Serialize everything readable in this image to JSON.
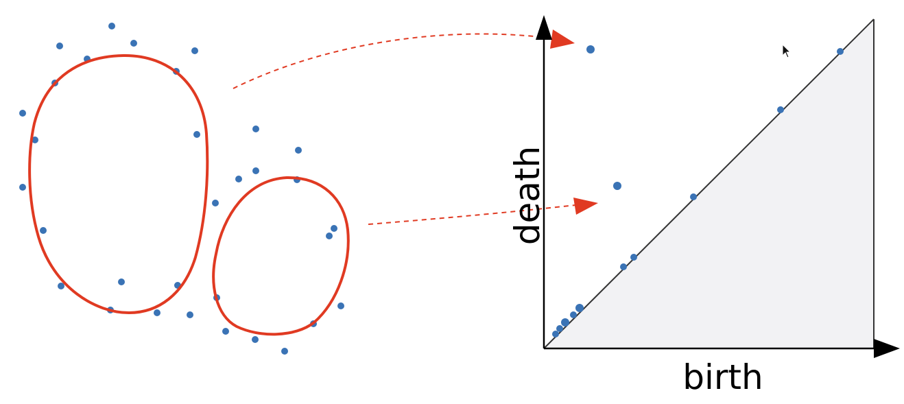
{
  "diagram": {
    "left_panel": {
      "description_none": "",
      "point_color": "#3a73b5",
      "loop_color": "#e03a22"
    },
    "persistence_diagram": {
      "x_axis_label": "birth",
      "y_axis_label": "death",
      "point_color": "#3a73b5",
      "arrow_color": "#e03a22",
      "region_fill": "#f2f2f4"
    }
  },
  "cursor": {
    "icon": "pointer-arrow-icon"
  }
}
